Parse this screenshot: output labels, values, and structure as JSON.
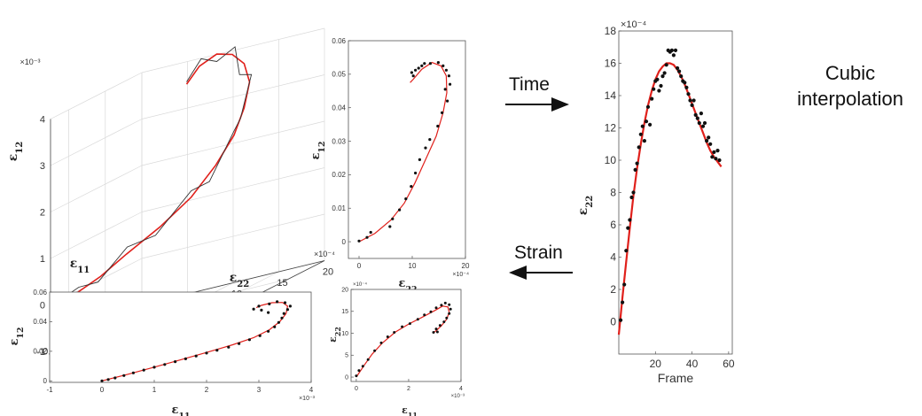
{
  "annotations": {
    "time": "Time",
    "strain": "Strain",
    "cubic_1": "Cubic",
    "cubic_2": "interpolation"
  },
  "colors": {
    "fit": "#e0201b",
    "points": "#111111",
    "trace": "#333333",
    "axis": "#444444"
  },
  "chart_data": [
    {
      "id": "3d",
      "type": "line",
      "title": "",
      "xlabel": "ε11",
      "ylabel": "ε22",
      "zlabel": "ε12",
      "x_ticks": [
        "0",
        "0.02",
        "0.04"
      ],
      "y_ticks": [
        "0",
        "5",
        "10",
        "15",
        "20"
      ],
      "z_ticks": [
        "-1",
        "0",
        "1",
        "2",
        "3",
        "4"
      ],
      "z_exponent": "×10⁻³",
      "y_exponent": "×10⁻⁴",
      "series": [
        {
          "role": "fit",
          "points": [
            [
              0.045,
              0,
              0
            ],
            [
              0.043,
              1.5,
              0.05
            ],
            [
              0.04,
              3.5,
              0.25
            ],
            [
              0.036,
              5.5,
              0.55
            ],
            [
              0.03,
              8,
              0.9
            ],
            [
              0.023,
              10,
              1.3
            ],
            [
              0.017,
              11.5,
              1.8
            ],
            [
              0.012,
              12.5,
              2.3
            ],
            [
              0.009,
              13,
              2.8
            ],
            [
              0.006,
              13,
              3.3
            ],
            [
              0.004,
              12,
              3.7
            ],
            [
              0.003,
              10.5,
              3.95
            ],
            [
              0.004,
              9,
              4.05
            ],
            [
              0.006,
              7.5,
              3.9
            ],
            [
              0.008,
              6.5,
              3.6
            ]
          ]
        },
        {
          "role": "raw",
          "points": [
            [
              0.045,
              0,
              0
            ],
            [
              0.042,
              1.5,
              0.15
            ],
            [
              0.041,
              3.4,
              0.15
            ],
            [
              0.036,
              5.6,
              0.7
            ],
            [
              0.031,
              7.7,
              0.75
            ],
            [
              0.024,
              10.2,
              1.45
            ],
            [
              0.019,
              11.2,
              1.5
            ],
            [
              0.013,
              12.7,
              2.4
            ],
            [
              0.01,
              12.8,
              2.6
            ],
            [
              0.006,
              13.2,
              3.45
            ],
            [
              0.005,
              11.7,
              3.5
            ],
            [
              0.003,
              10.8,
              4.1
            ],
            [
              0.005,
              9.2,
              3.9
            ],
            [
              0.006,
              7.7,
              4.05
            ],
            [
              0.008,
              6.5,
              3.65
            ]
          ]
        },
        {
          "role": "start",
          "points": [
            [
              0.045,
              0,
              0
            ]
          ]
        }
      ]
    },
    {
      "id": "e12_vs_e22",
      "type": "scatter",
      "title": "",
      "xlabel": "ε22",
      "ylabel": "ε12",
      "x_exponent": "×10⁻⁴",
      "xlim": [
        -2,
        20
      ],
      "ylim": [
        -0.005,
        0.06
      ],
      "x_ticks": [
        0,
        10,
        20
      ],
      "y_ticks": [
        0,
        0.01,
        0.02,
        0.03,
        0.04,
        0.05,
        0.06
      ],
      "points": [
        [
          0,
          0.0002
        ],
        [
          1.5,
          0.0013
        ],
        [
          2.2,
          0.0028
        ],
        [
          5.8,
          0.0045
        ],
        [
          6.3,
          0.0068
        ],
        [
          7.6,
          0.0095
        ],
        [
          8.8,
          0.0128
        ],
        [
          9.8,
          0.0165
        ],
        [
          10.6,
          0.0205
        ],
        [
          11.4,
          0.0245
        ],
        [
          12.5,
          0.028
        ],
        [
          13.3,
          0.0305
        ],
        [
          14.8,
          0.0345
        ],
        [
          15.6,
          0.0385
        ],
        [
          16.6,
          0.042
        ],
        [
          16.2,
          0.0455
        ],
        [
          17.1,
          0.047
        ],
        [
          16.9,
          0.0495
        ],
        [
          16.4,
          0.0512
        ],
        [
          15.8,
          0.0525
        ],
        [
          14.9,
          0.0535
        ],
        [
          13.4,
          0.0532
        ],
        [
          11.8,
          0.0525
        ],
        [
          10.6,
          0.0512
        ],
        [
          10.2,
          0.0495
        ],
        [
          9.9,
          0.0505
        ],
        [
          11.2,
          0.0518
        ],
        [
          12.3,
          0.0532
        ]
      ],
      "fit": [
        [
          0,
          0.0
        ],
        [
          3,
          0.0025
        ],
        [
          6,
          0.0065
        ],
        [
          8.5,
          0.0115
        ],
        [
          10.5,
          0.0175
        ],
        [
          12.5,
          0.0245
        ],
        [
          14.5,
          0.0315
        ],
        [
          15.8,
          0.0385
        ],
        [
          16.5,
          0.0445
        ],
        [
          16.4,
          0.0495
        ],
        [
          15.4,
          0.0525
        ],
        [
          13.7,
          0.0535
        ],
        [
          11.8,
          0.0515
        ],
        [
          10.2,
          0.0485
        ],
        [
          9.6,
          0.0475
        ]
      ]
    },
    {
      "id": "e12_vs_e11",
      "type": "scatter",
      "title": "",
      "xlabel": "ε11",
      "ylabel": "ε12",
      "x_exponent": "×10⁻³",
      "xlim": [
        -1,
        4
      ],
      "ylim": [
        -0.001,
        0.06
      ],
      "x_ticks": [
        -1,
        0,
        1,
        2,
        3,
        4
      ],
      "y_ticks": [
        0,
        0.02,
        0.04,
        0.06
      ],
      "points": [
        [
          0,
          0
        ],
        [
          0.12,
          0.0009
        ],
        [
          0.25,
          0.002
        ],
        [
          0.42,
          0.0036
        ],
        [
          0.6,
          0.0054
        ],
        [
          0.8,
          0.0073
        ],
        [
          1.0,
          0.0092
        ],
        [
          1.2,
          0.0111
        ],
        [
          1.4,
          0.013
        ],
        [
          1.6,
          0.0149
        ],
        [
          1.8,
          0.0168
        ],
        [
          2.0,
          0.0188
        ],
        [
          2.2,
          0.0207
        ],
        [
          2.42,
          0.0228
        ],
        [
          2.62,
          0.0252
        ],
        [
          2.82,
          0.0278
        ],
        [
          3.02,
          0.0305
        ],
        [
          3.18,
          0.0335
        ],
        [
          3.3,
          0.0365
        ],
        [
          3.38,
          0.0395
        ],
        [
          3.44,
          0.0425
        ],
        [
          3.48,
          0.0455
        ],
        [
          3.55,
          0.0482
        ],
        [
          3.6,
          0.0505
        ],
        [
          3.5,
          0.0528
        ],
        [
          3.35,
          0.0535
        ],
        [
          3.2,
          0.052
        ],
        [
          3.0,
          0.0505
        ],
        [
          2.9,
          0.0485
        ],
        [
          3.05,
          0.0478
        ],
        [
          3.18,
          0.0462
        ]
      ],
      "fit": [
        [
          0,
          0
        ],
        [
          0.5,
          0.0045
        ],
        [
          1.0,
          0.0093
        ],
        [
          1.5,
          0.0142
        ],
        [
          2.0,
          0.0192
        ],
        [
          2.5,
          0.0244
        ],
        [
          2.9,
          0.0292
        ],
        [
          3.2,
          0.0345
        ],
        [
          3.4,
          0.04
        ],
        [
          3.52,
          0.0455
        ],
        [
          3.55,
          0.0505
        ],
        [
          3.45,
          0.053
        ],
        [
          3.25,
          0.0528
        ],
        [
          3.05,
          0.051
        ],
        [
          2.95,
          0.0495
        ]
      ]
    },
    {
      "id": "e22_vs_e11",
      "type": "scatter",
      "title": "",
      "xlabel": "ε11",
      "ylabel": "ε22",
      "x_exponent": "×10⁻³",
      "y_exponent": "×10⁻⁴",
      "xlim": [
        -0.2,
        4
      ],
      "ylim": [
        -1,
        20
      ],
      "x_ticks": [
        0,
        2,
        4
      ],
      "y_ticks": [
        0,
        5,
        10,
        15,
        20
      ],
      "points": [
        [
          0,
          0.3
        ],
        [
          0.1,
          1.5
        ],
        [
          0.25,
          2.5
        ],
        [
          0.45,
          4
        ],
        [
          0.7,
          6
        ],
        [
          0.95,
          7.8
        ],
        [
          1.2,
          9.2
        ],
        [
          1.45,
          10.2
        ],
        [
          1.75,
          11.5
        ],
        [
          2.05,
          12.2
        ],
        [
          2.35,
          13.2
        ],
        [
          2.6,
          14.2
        ],
        [
          2.85,
          14.9
        ],
        [
          3.05,
          15.8
        ],
        [
          3.25,
          16.4
        ],
        [
          3.4,
          16.9
        ],
        [
          3.55,
          16.5
        ],
        [
          3.6,
          15.5
        ],
        [
          3.55,
          14.5
        ],
        [
          3.45,
          13.5
        ],
        [
          3.35,
          12.6
        ],
        [
          3.2,
          11.8
        ],
        [
          3.05,
          11
        ],
        [
          2.95,
          10.2
        ],
        [
          3.1,
          10.3
        ]
      ],
      "fit": [
        [
          0,
          0
        ],
        [
          0.3,
          2.7
        ],
        [
          0.6,
          5.2
        ],
        [
          1.0,
          7.8
        ],
        [
          1.5,
          10.3
        ],
        [
          2.0,
          12.1
        ],
        [
          2.5,
          13.6
        ],
        [
          3.0,
          15.2
        ],
        [
          3.3,
          16.2
        ],
        [
          3.5,
          16.0
        ],
        [
          3.55,
          14.8
        ],
        [
          3.45,
          13.2
        ],
        [
          3.25,
          11.7
        ],
        [
          3.05,
          10.6
        ],
        [
          2.95,
          10.1
        ]
      ]
    },
    {
      "id": "e22_vs_frame",
      "type": "scatter",
      "title": "",
      "xlabel": "Frame",
      "ylabel": "ε22",
      "y_exponent": "×10⁻⁴",
      "xlim": [
        0,
        62
      ],
      "ylim": [
        -2,
        18
      ],
      "x_ticks": [
        20,
        40,
        60
      ],
      "y_ticks": [
        0,
        2,
        4,
        6,
        8,
        10,
        12,
        14,
        16,
        18
      ],
      "points": [
        [
          1,
          0.1
        ],
        [
          2,
          1.2
        ],
        [
          3,
          2.3
        ],
        [
          4,
          4.4
        ],
        [
          5,
          5.8
        ],
        [
          6,
          6.3
        ],
        [
          7,
          7.7
        ],
        [
          8,
          8
        ],
        [
          9,
          9.4
        ],
        [
          10,
          9.8
        ],
        [
          11,
          10.8
        ],
        [
          12,
          11.6
        ],
        [
          13,
          12.1
        ],
        [
          14,
          11.2
        ],
        [
          15,
          12.4
        ],
        [
          16,
          13.3
        ],
        [
          17,
          12.2
        ],
        [
          18,
          13.8
        ],
        [
          19,
          14.4
        ],
        [
          20,
          14.9
        ],
        [
          21,
          15
        ],
        [
          22,
          14.3
        ],
        [
          23,
          14.6
        ],
        [
          24,
          15.2
        ],
        [
          25,
          15.4
        ],
        [
          26,
          15.9
        ],
        [
          27,
          16.8
        ],
        [
          28,
          16.7
        ],
        [
          29,
          16.8
        ],
        [
          30,
          16.5
        ],
        [
          31,
          16.8
        ],
        [
          32,
          15.7
        ],
        [
          33,
          15.5
        ],
        [
          34,
          15.2
        ],
        [
          35,
          14.9
        ],
        [
          36,
          14.8
        ],
        [
          37,
          14.5
        ],
        [
          38,
          14.1
        ],
        [
          39,
          13.7
        ],
        [
          40,
          13.4
        ],
        [
          41,
          13.7
        ],
        [
          42,
          12.8
        ],
        [
          43,
          12.6
        ],
        [
          44,
          12.3
        ],
        [
          45,
          12.9
        ],
        [
          46,
          12.1
        ],
        [
          47,
          12.3
        ],
        [
          48,
          11.2
        ],
        [
          49,
          11.4
        ],
        [
          50,
          11
        ],
        [
          51,
          10.2
        ],
        [
          52,
          10.5
        ],
        [
          53,
          10.1
        ],
        [
          54,
          10.6
        ],
        [
          55,
          10
        ]
      ],
      "fit": [
        [
          0,
          -0.8
        ],
        [
          2,
          1.5
        ],
        [
          4,
          3.7
        ],
        [
          6,
          5.8
        ],
        [
          8,
          7.8
        ],
        [
          10,
          9.5
        ],
        [
          12,
          11.0
        ],
        [
          14,
          12.3
        ],
        [
          16,
          13.4
        ],
        [
          18,
          14.3
        ],
        [
          20,
          15.0
        ],
        [
          22,
          15.5
        ],
        [
          24,
          15.8
        ],
        [
          26,
          16.0
        ],
        [
          28,
          16.0
        ],
        [
          30,
          15.9
        ],
        [
          32,
          15.6
        ],
        [
          34,
          15.2
        ],
        [
          36,
          14.7
        ],
        [
          38,
          14.1
        ],
        [
          40,
          13.5
        ],
        [
          42,
          12.9
        ],
        [
          44,
          12.3
        ],
        [
          46,
          11.7
        ],
        [
          48,
          11.1
        ],
        [
          50,
          10.6
        ],
        [
          52,
          10.2
        ],
        [
          54,
          9.9
        ],
        [
          56,
          9.6
        ]
      ]
    }
  ]
}
